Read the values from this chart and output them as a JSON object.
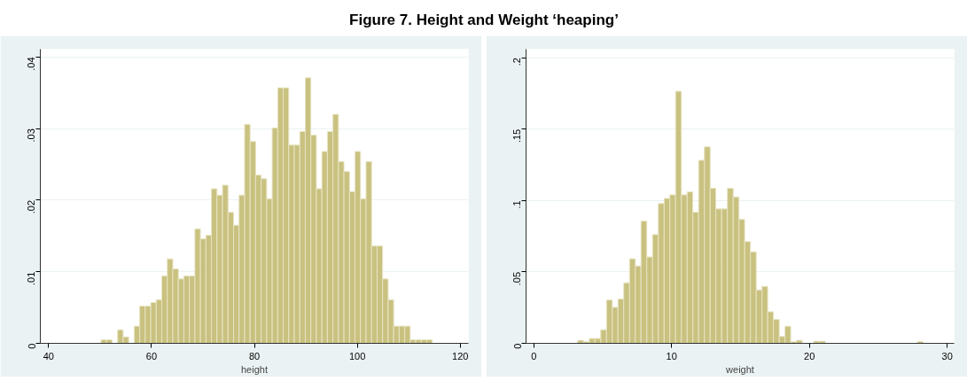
{
  "chart_data": [
    {
      "type": "histogram",
      "title": "Figure 7. Height and Weight ‘heaping’",
      "xlabel": "height",
      "color": "#c9c17f",
      "grid": "y",
      "bins": [
        50.2,
        51.27,
        52.35,
        53.42,
        54.49,
        55.57,
        56.64,
        57.71,
        58.78,
        59.86,
        60.93,
        62.0,
        63.08,
        64.15,
        65.22,
        66.3,
        67.37,
        68.44,
        69.51,
        70.59,
        71.66,
        72.73,
        73.81,
        74.88,
        75.95,
        77.03,
        78.1,
        79.17,
        80.24,
        81.32,
        82.39,
        83.46,
        84.54,
        85.61,
        86.68,
        87.76,
        88.83,
        89.9,
        90.97,
        92.05,
        93.12,
        94.19,
        95.27,
        96.34,
        97.41,
        98.49,
        99.56,
        100.63,
        101.7,
        102.78,
        103.85,
        104.92,
        106.0,
        107.07,
        108.14,
        109.22,
        110.29,
        111.36,
        112.43,
        113.51,
        114.58
      ],
      "values": [
        0.0005,
        0.0005,
        0,
        0.0019,
        0.0009,
        0,
        0.0024,
        0.0052,
        0.0052,
        0.0057,
        0.0061,
        0.0094,
        0.0118,
        0.0104,
        0.009,
        0.0094,
        0.0094,
        0.016,
        0.0146,
        0.0151,
        0.0216,
        0.0207,
        0.0221,
        0.0183,
        0.0165,
        0.0207,
        0.0306,
        0.0282,
        0.0235,
        0.023,
        0.0202,
        0.0301,
        0.0357,
        0.0357,
        0.0277,
        0.0277,
        0.0296,
        0.0371,
        0.0291,
        0.0216,
        0.0268,
        0.0296,
        0.032,
        0.0254,
        0.024,
        0.0212,
        0.0268,
        0.0202,
        0.0254,
        0.0136,
        0.0136,
        0.009,
        0.0061,
        0.0024,
        0.0024,
        0.0024,
        0.0005,
        0.0005,
        0.0005,
        0.0005
      ],
      "xlim": [
        38.4,
        121.6
      ],
      "xticks": [
        40,
        60,
        80,
        100,
        120
      ],
      "ylim": [
        0,
        0.0411
      ],
      "yticks": [
        {
          "value": 0,
          "label": "0"
        },
        {
          "value": 0.01,
          "label": ".01"
        },
        {
          "value": 0.02,
          "label": ".02"
        },
        {
          "value": 0.03,
          "label": ".03"
        },
        {
          "value": 0.04,
          "label": ".04"
        }
      ]
    },
    {
      "type": "histogram",
      "xlabel": "weight",
      "color": "#c9c17f",
      "grid": "y",
      "bins": [
        3.19,
        3.61,
        4.03,
        4.44,
        4.86,
        5.28,
        5.7,
        6.11,
        6.53,
        6.95,
        7.37,
        7.78,
        8.2,
        8.62,
        9.04,
        9.46,
        9.87,
        10.29,
        10.71,
        11.13,
        11.54,
        11.96,
        12.38,
        12.8,
        13.21,
        13.63,
        14.05,
        14.47,
        14.89,
        15.3,
        15.72,
        16.14,
        16.56,
        16.97,
        17.39,
        17.81,
        18.23,
        18.64,
        19.06,
        19.48,
        19.9,
        20.32,
        20.73,
        21.15,
        21.57,
        21.99,
        22.4,
        22.82,
        23.24,
        23.66,
        24.07,
        24.49,
        24.91,
        25.33,
        25.74,
        26.16,
        26.58,
        27.0,
        27.42,
        27.83,
        28.25
      ],
      "values": [
        0.0021,
        0.0011,
        0.0034,
        0.0034,
        0.0095,
        0.0303,
        0.0252,
        0.0311,
        0.0424,
        0.0592,
        0.0542,
        0.0857,
        0.0605,
        0.0761,
        0.0979,
        0.1015,
        0.104,
        0.1765,
        0.104,
        0.1061,
        0.0918,
        0.1282,
        0.1376,
        0.1086,
        0.0941,
        0.0941,
        0.1086,
        0.1025,
        0.0868,
        0.0712,
        0.0641,
        0.0374,
        0.0399,
        0.0221,
        0.0168,
        0.0048,
        0.012,
        0.0011,
        0.0021,
        0,
        0,
        0.0015,
        0.0015,
        0,
        0,
        0,
        0,
        0,
        0,
        0,
        0,
        0,
        0,
        0,
        0,
        0,
        0,
        0,
        0,
        0.0013
      ],
      "xlim": [
        -0.56,
        30.5
      ],
      "xticks": [
        0,
        10,
        20,
        30
      ],
      "ylim": [
        0,
        0.206
      ],
      "yticks": [
        {
          "value": 0,
          "label": "0"
        },
        {
          "value": 0.05,
          "label": ".05"
        },
        {
          "value": 0.1,
          "label": ".1"
        },
        {
          "value": 0.15,
          "label": ".15"
        },
        {
          "value": 0.2,
          "label": ".2"
        }
      ]
    }
  ]
}
